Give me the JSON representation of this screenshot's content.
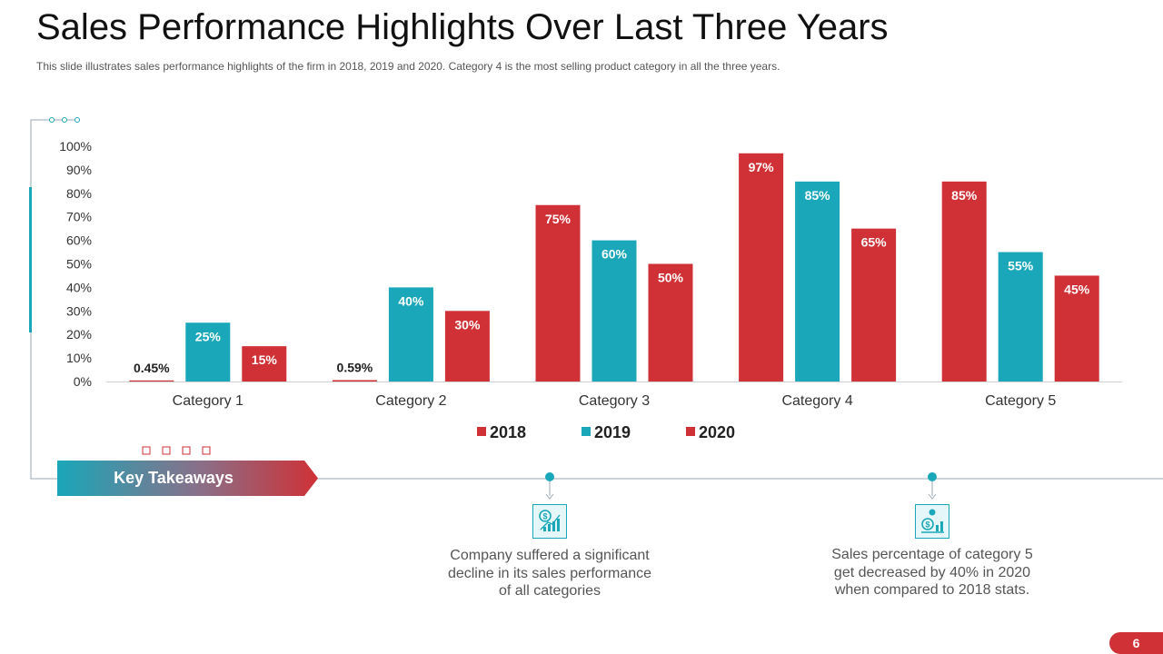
{
  "slide": {
    "title": "Sales Performance Highlights Over Last Three Years",
    "subtitle": "This slide illustrates sales performance  highlights  of the firm in 2018, 2019 and 2020. Category  4 is the most selling product category in all the three years.",
    "page_number": "6"
  },
  "colors": {
    "red": "#cf3136",
    "teal": "#1aa7b9",
    "line": "#9aa8b3"
  },
  "chart_data": {
    "type": "bar",
    "title": "",
    "xlabel": "",
    "ylabel": "",
    "ylim": [
      0,
      100
    ],
    "yticks": [
      "0%",
      "10%",
      "20%",
      "30%",
      "40%",
      "50%",
      "60%",
      "70%",
      "80%",
      "90%",
      "100%"
    ],
    "categories": [
      "Category 1",
      "Category 2",
      "Category 3",
      "Category 4",
      "Category 5"
    ],
    "series": [
      {
        "name": "2018",
        "color": "#cf3136",
        "values": [
          0.45,
          0.59,
          75,
          97,
          85
        ],
        "labels": [
          "0.45%",
          "0.59%",
          "75%",
          "97%",
          "85%"
        ]
      },
      {
        "name": "2019",
        "color": "#1aa7b9",
        "values": [
          25,
          40,
          60,
          85,
          55
        ],
        "labels": [
          "25%",
          "40%",
          "60%",
          "85%",
          "55%"
        ]
      },
      {
        "name": "2020",
        "color": "#cf3136",
        "values": [
          15,
          30,
          50,
          65,
          45
        ],
        "labels": [
          "15%",
          "30%",
          "50%",
          "65%",
          "45%"
        ]
      }
    ],
    "legend_position": "bottom-center"
  },
  "takeaways": {
    "heading": "Key Takeaways",
    "items": [
      {
        "icon": "dollar-growth-chart-icon",
        "text": "Company suffered a significant decline in its sales performance of all categories"
      },
      {
        "icon": "money-person-chart-icon",
        "text": "Sales percentage of category 5 get decreased  by 40% in 2020 when compared to 2018 stats."
      }
    ]
  }
}
